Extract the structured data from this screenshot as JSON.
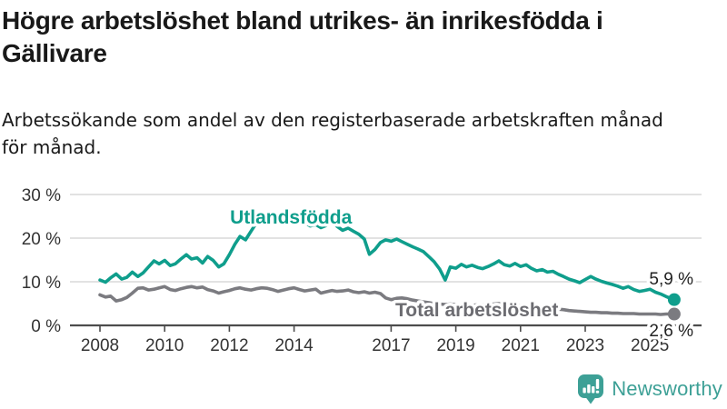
{
  "header": {
    "title_lines": [
      "Högre arbetslöshet bland utrikes- än inrikesfödda i",
      "Gällivare"
    ],
    "subtitle_lines": [
      "Arbetssökande som andel av den registerbaserade arbetskraften månad",
      "för månad."
    ]
  },
  "chart_data": {
    "type": "line",
    "title": "Högre arbetslöshet bland utrikes- än inrikesfödda i Gällivare",
    "subtitle": "Arbetssökande som andel av den registerbaserade arbetskraften månad för månad.",
    "xlabel": "",
    "ylabel": "",
    "x_unit": "year_decimal",
    "x_range": [
      2008.0,
      2025.75
    ],
    "ylim": [
      0,
      30
    ],
    "grid": true,
    "legend_position": "inline-labels",
    "y_ticks": [
      {
        "value": 0,
        "label": "0 %"
      },
      {
        "value": 10,
        "label": "10 %"
      },
      {
        "value": 20,
        "label": "20 %"
      },
      {
        "value": 30,
        "label": "30 %"
      }
    ],
    "x_ticks": [
      {
        "value": 2008,
        "label": "2008"
      },
      {
        "value": 2010,
        "label": "2010"
      },
      {
        "value": 2012,
        "label": "2012"
      },
      {
        "value": 2014,
        "label": "2014"
      },
      {
        "value": 2017,
        "label": "2017"
      },
      {
        "value": 2019,
        "label": "2019"
      },
      {
        "value": 2021,
        "label": "2021"
      },
      {
        "value": 2023,
        "label": "2023"
      },
      {
        "value": 2025,
        "label": "2025"
      }
    ],
    "colors": {
      "grid": "#d9d9d9",
      "axis": "#4c4c4c",
      "tick_label": "#333333",
      "end_label": "#222222"
    },
    "series": [
      {
        "name": "Utlandsfödda",
        "color": "#0f9e8c",
        "label_color": "#0f9e8c",
        "label": {
          "text": "Utlandsfödda",
          "t": 2012.02,
          "v": 23.33
        },
        "end_value_label": "5,9 %",
        "end_value": 5.9,
        "end_label_dy": -16.5,
        "points": [
          [
            2008.0,
            10.4
          ],
          [
            2008.17,
            9.9
          ],
          [
            2008.33,
            10.9
          ],
          [
            2008.5,
            11.8
          ],
          [
            2008.67,
            10.6
          ],
          [
            2008.83,
            11.0
          ],
          [
            2009.0,
            12.2
          ],
          [
            2009.17,
            11.2
          ],
          [
            2009.33,
            12.0
          ],
          [
            2009.5,
            13.4
          ],
          [
            2009.67,
            14.8
          ],
          [
            2009.83,
            14.1
          ],
          [
            2010.0,
            14.9
          ],
          [
            2010.17,
            13.7
          ],
          [
            2010.33,
            14.1
          ],
          [
            2010.5,
            15.2
          ],
          [
            2010.67,
            16.2
          ],
          [
            2010.83,
            15.2
          ],
          [
            2011.0,
            15.5
          ],
          [
            2011.17,
            14.3
          ],
          [
            2011.33,
            15.8
          ],
          [
            2011.5,
            14.9
          ],
          [
            2011.67,
            13.4
          ],
          [
            2011.83,
            14.1
          ],
          [
            2012.0,
            16.2
          ],
          [
            2012.17,
            18.6
          ],
          [
            2012.33,
            20.4
          ],
          [
            2012.5,
            19.6
          ],
          [
            2012.67,
            21.6
          ],
          [
            2012.83,
            23.4
          ],
          [
            2013.0,
            24.4
          ],
          [
            2013.17,
            23.7
          ],
          [
            2013.33,
            24.9
          ],
          [
            2013.5,
            24.2
          ],
          [
            2013.67,
            23.4
          ],
          [
            2013.83,
            23.8
          ],
          [
            2014.0,
            23.2
          ],
          [
            2014.17,
            25.3
          ],
          [
            2014.33,
            23.6
          ],
          [
            2014.5,
            22.8
          ],
          [
            2014.67,
            23.1
          ],
          [
            2014.83,
            22.4
          ],
          [
            2015.0,
            22.9
          ],
          [
            2015.17,
            23.6
          ],
          [
            2015.33,
            22.7
          ],
          [
            2015.5,
            21.8
          ],
          [
            2015.67,
            22.3
          ],
          [
            2015.83,
            21.6
          ],
          [
            2016.0,
            20.9
          ],
          [
            2016.17,
            19.8
          ],
          [
            2016.33,
            16.3
          ],
          [
            2016.5,
            17.4
          ],
          [
            2016.67,
            19.0
          ],
          [
            2016.83,
            19.6
          ],
          [
            2017.0,
            19.3
          ],
          [
            2017.17,
            19.8
          ],
          [
            2017.33,
            19.2
          ],
          [
            2017.5,
            18.6
          ],
          [
            2017.67,
            18.0
          ],
          [
            2017.83,
            17.5
          ],
          [
            2018.0,
            16.9
          ],
          [
            2018.17,
            15.7
          ],
          [
            2018.33,
            14.6
          ],
          [
            2018.5,
            12.9
          ],
          [
            2018.67,
            10.4
          ],
          [
            2018.83,
            13.4
          ],
          [
            2019.0,
            13.1
          ],
          [
            2019.17,
            14.0
          ],
          [
            2019.33,
            13.4
          ],
          [
            2019.5,
            13.8
          ],
          [
            2019.67,
            13.3
          ],
          [
            2019.83,
            13.0
          ],
          [
            2020.0,
            13.5
          ],
          [
            2020.17,
            14.1
          ],
          [
            2020.33,
            14.8
          ],
          [
            2020.5,
            13.9
          ],
          [
            2020.67,
            13.6
          ],
          [
            2020.83,
            14.2
          ],
          [
            2021.0,
            13.5
          ],
          [
            2021.17,
            13.9
          ],
          [
            2021.33,
            13.1
          ],
          [
            2021.5,
            12.5
          ],
          [
            2021.67,
            12.8
          ],
          [
            2021.83,
            12.2
          ],
          [
            2022.0,
            12.4
          ],
          [
            2022.17,
            11.7
          ],
          [
            2022.33,
            11.2
          ],
          [
            2022.5,
            10.6
          ],
          [
            2022.67,
            10.2
          ],
          [
            2022.83,
            9.8
          ],
          [
            2023.0,
            10.5
          ],
          [
            2023.17,
            11.2
          ],
          [
            2023.33,
            10.6
          ],
          [
            2023.5,
            10.1
          ],
          [
            2023.67,
            9.7
          ],
          [
            2023.83,
            9.4
          ],
          [
            2024.0,
            9.0
          ],
          [
            2024.17,
            8.5
          ],
          [
            2024.33,
            8.9
          ],
          [
            2024.5,
            8.2
          ],
          [
            2024.67,
            7.8
          ],
          [
            2024.83,
            8.0
          ],
          [
            2025.0,
            8.3
          ],
          [
            2025.17,
            7.6
          ],
          [
            2025.33,
            7.2
          ],
          [
            2025.5,
            6.6
          ],
          [
            2025.67,
            6.1
          ],
          [
            2025.75,
            5.9
          ]
        ]
      },
      {
        "name": "Total arbetslöshet",
        "color": "#7b7b80",
        "label_color": "#6c6c71",
        "label": {
          "text": "Total arbetslöshet",
          "t": 2017.13,
          "v": 2.08
        },
        "end_value_label": "2,6 %",
        "end_value": 2.6,
        "end_label_dy": 24.5,
        "points": [
          [
            2008.0,
            7.0
          ],
          [
            2008.17,
            6.5
          ],
          [
            2008.33,
            6.7
          ],
          [
            2008.5,
            5.6
          ],
          [
            2008.67,
            5.9
          ],
          [
            2008.83,
            6.4
          ],
          [
            2009.0,
            7.4
          ],
          [
            2009.17,
            8.5
          ],
          [
            2009.33,
            8.6
          ],
          [
            2009.5,
            8.1
          ],
          [
            2009.67,
            8.3
          ],
          [
            2009.83,
            8.6
          ],
          [
            2010.0,
            8.9
          ],
          [
            2010.17,
            8.2
          ],
          [
            2010.33,
            8.0
          ],
          [
            2010.5,
            8.4
          ],
          [
            2010.67,
            8.7
          ],
          [
            2010.83,
            8.9
          ],
          [
            2011.0,
            8.6
          ],
          [
            2011.17,
            8.8
          ],
          [
            2011.33,
            8.2
          ],
          [
            2011.5,
            7.9
          ],
          [
            2011.67,
            7.4
          ],
          [
            2011.83,
            7.7
          ],
          [
            2012.0,
            8.0
          ],
          [
            2012.17,
            8.4
          ],
          [
            2012.33,
            8.6
          ],
          [
            2012.5,
            8.3
          ],
          [
            2012.67,
            8.1
          ],
          [
            2012.83,
            8.4
          ],
          [
            2013.0,
            8.6
          ],
          [
            2013.17,
            8.5
          ],
          [
            2013.33,
            8.2
          ],
          [
            2013.5,
            7.8
          ],
          [
            2013.67,
            8.1
          ],
          [
            2013.83,
            8.4
          ],
          [
            2014.0,
            8.6
          ],
          [
            2014.17,
            8.2
          ],
          [
            2014.33,
            7.9
          ],
          [
            2014.5,
            8.1
          ],
          [
            2014.67,
            8.3
          ],
          [
            2014.83,
            7.4
          ],
          [
            2015.0,
            7.7
          ],
          [
            2015.17,
            8.0
          ],
          [
            2015.33,
            7.8
          ],
          [
            2015.5,
            7.9
          ],
          [
            2015.67,
            8.1
          ],
          [
            2015.83,
            7.7
          ],
          [
            2016.0,
            7.5
          ],
          [
            2016.17,
            7.7
          ],
          [
            2016.33,
            7.4
          ],
          [
            2016.5,
            7.6
          ],
          [
            2016.67,
            7.3
          ],
          [
            2016.83,
            6.3
          ],
          [
            2017.0,
            5.9
          ],
          [
            2017.17,
            6.2
          ],
          [
            2017.33,
            6.3
          ],
          [
            2017.5,
            6.1
          ],
          [
            2017.67,
            5.8
          ],
          [
            2017.83,
            5.6
          ],
          [
            2018.0,
            5.4
          ],
          [
            2018.17,
            5.2
          ],
          [
            2018.33,
            5.0
          ],
          [
            2018.5,
            4.9
          ],
          [
            2018.67,
            4.8
          ],
          [
            2018.83,
            4.9
          ],
          [
            2019.0,
            4.8
          ],
          [
            2019.17,
            4.7
          ],
          [
            2019.33,
            4.6
          ],
          [
            2019.5,
            4.6
          ],
          [
            2019.67,
            4.7
          ],
          [
            2019.83,
            4.7
          ],
          [
            2020.0,
            4.8
          ],
          [
            2020.17,
            4.9
          ],
          [
            2020.33,
            5.0
          ],
          [
            2020.5,
            4.9
          ],
          [
            2020.67,
            4.8
          ],
          [
            2020.83,
            4.7
          ],
          [
            2021.0,
            4.6
          ],
          [
            2021.17,
            4.5
          ],
          [
            2021.33,
            4.3
          ],
          [
            2021.5,
            4.2
          ],
          [
            2021.67,
            4.1
          ],
          [
            2021.83,
            4.0
          ],
          [
            2022.0,
            3.9
          ],
          [
            2022.17,
            3.7
          ],
          [
            2022.33,
            3.6
          ],
          [
            2022.5,
            3.4
          ],
          [
            2022.67,
            3.3
          ],
          [
            2022.83,
            3.2
          ],
          [
            2023.0,
            3.1
          ],
          [
            2023.17,
            3.0
          ],
          [
            2023.33,
            3.0
          ],
          [
            2023.5,
            2.9
          ],
          [
            2023.67,
            2.9
          ],
          [
            2023.83,
            2.8
          ],
          [
            2024.0,
            2.8
          ],
          [
            2024.17,
            2.7
          ],
          [
            2024.33,
            2.7
          ],
          [
            2024.5,
            2.7
          ],
          [
            2024.67,
            2.6
          ],
          [
            2024.83,
            2.6
          ],
          [
            2025.0,
            2.6
          ],
          [
            2025.17,
            2.6
          ],
          [
            2025.33,
            2.5
          ],
          [
            2025.5,
            2.6
          ],
          [
            2025.67,
            2.6
          ],
          [
            2025.75,
            2.6
          ]
        ]
      }
    ]
  },
  "footer": {
    "logo_text": "Newsworthy",
    "logo_color": "#3da096"
  }
}
